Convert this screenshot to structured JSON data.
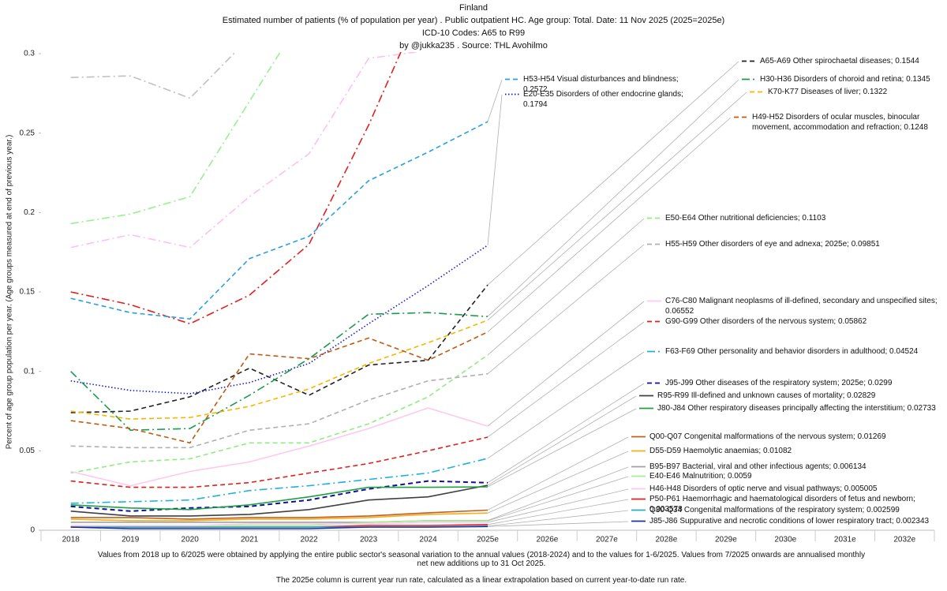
{
  "chart_data": {
    "type": "line",
    "title": "Finland",
    "subtitles": [
      "Estimated number of patients  (% of population per year) . Public outpatient HC. Age group: Total. Date: 11 Nov 2025 (2025=2025e)",
      "ICD-10 Codes: A65 to R99",
      "by @jukka235 . Source: THL Avohilmo"
    ],
    "y_label": "Percent of age group population per year. (Age groups measured at end of previous year.)",
    "notes": [
      "Values from 2018 up to 6/2025 were obtained by applying the entire public sector's seasonal variation to the annual values (2018-2024) and to the values for 1-6/2025. Values from 7/2025 onwards are annualised monthly net new additions up to 31 Oct 2025.",
      "The 2025e column is current year run rate, calculated as a linear extrapolation based on current year-to-date run rate."
    ],
    "categories": [
      "2018",
      "2019",
      "2020",
      "2021",
      "2022",
      "2023",
      "2024",
      "2025e",
      "2026e",
      "2027e",
      "2028e",
      "2029e",
      "2030e",
      "2031e",
      "2032e"
    ],
    "ylim": [
      0,
      0.3
    ],
    "yticks": [
      0,
      0.05,
      0.1,
      0.15,
      0.2,
      0.25,
      0.3
    ],
    "grid": false,
    "series": [
      {
        "color": "#c0c0c0",
        "dash": "dashdot",
        "values": [
          0.285,
          0.286,
          0.272,
          0.31,
          null,
          null,
          null,
          null,
          null,
          null,
          null,
          null,
          null,
          null,
          null
        ]
      },
      {
        "color": "#98f090",
        "dash": "dashdot",
        "values": [
          0.193,
          0.199,
          0.21,
          0.27,
          0.33,
          null,
          null,
          null,
          null,
          null,
          null,
          null,
          null,
          null,
          null
        ]
      },
      {
        "color": "#ffc0f0",
        "dash": "dashdot",
        "values": [
          0.178,
          0.186,
          0.178,
          0.21,
          0.237,
          0.297,
          0.302,
          null,
          null,
          null,
          null,
          null,
          null,
          null,
          null
        ]
      },
      {
        "color": "#e02020",
        "dash": "dashdot",
        "values": [
          0.15,
          0.142,
          0.13,
          0.148,
          0.18,
          0.255,
          0.34,
          null,
          null,
          null,
          null,
          null,
          null,
          null,
          null
        ]
      },
      {
        "name": "A65-A69 Other spirochaetal diseases; 0.1544",
        "color": "#222222",
        "dash": "dashed",
        "values": [
          0.074,
          0.075,
          0.084,
          0.102,
          0.085,
          0.104,
          0.107,
          0.1544,
          null,
          null,
          null,
          null,
          null,
          null,
          null
        ]
      },
      {
        "name": "H53-H54 Visual disturbances and blindness; 0.2572",
        "color": "#2aa0e0",
        "dash": "dashed",
        "values": [
          0.146,
          0.137,
          0.133,
          0.171,
          0.185,
          0.22,
          0.238,
          0.2572,
          null,
          null,
          null,
          null,
          null,
          null,
          null
        ]
      },
      {
        "name": "E20-E35 Disorders of other endocrine glands; 0.1794",
        "color": "#1a1acc",
        "dash": "dotted",
        "values": [
          0.094,
          0.088,
          0.086,
          0.093,
          0.105,
          0.13,
          0.154,
          0.1794,
          null,
          null,
          null,
          null,
          null,
          null,
          null
        ]
      },
      {
        "name": "H30-H36 Disorders of choroid and retina; 0.1345",
        "color": "#1a9a50",
        "dash": "dashdot",
        "values": [
          0.1,
          0.063,
          0.064,
          0.085,
          0.108,
          0.136,
          0.137,
          0.1345,
          null,
          null,
          null,
          null,
          null,
          null,
          null
        ]
      },
      {
        "name": "K70-K77 Diseases of liver; 0.1322",
        "color": "#f5b800",
        "dash": "dashed",
        "values": [
          0.075,
          0.07,
          0.071,
          0.078,
          0.089,
          0.105,
          0.118,
          0.1322,
          null,
          null,
          null,
          null,
          null,
          null,
          null
        ]
      },
      {
        "name": "H49-H52 Disorders of ocular muscles, binocular movement, accommodation and refraction; 0.1248",
        "color": "#c05a10",
        "dash": "dashed",
        "values": [
          0.069,
          0.064,
          0.055,
          0.111,
          0.108,
          0.121,
          0.107,
          0.1248,
          null,
          null,
          null,
          null,
          null,
          null,
          null
        ]
      },
      {
        "name": "E50-E64 Other nutritional deficiencies; 0.1103",
        "color": "#90ee80",
        "dash": "dashed",
        "values": [
          0.036,
          0.043,
          0.045,
          0.055,
          0.055,
          0.067,
          0.084,
          0.1103,
          null,
          null,
          null,
          null,
          null,
          null,
          null
        ]
      },
      {
        "name": "H55-H59 Other disorders of eye and adnexa; 2025e; 0.09851",
        "color": "#b0b0b0",
        "dash": "dashed",
        "values": [
          0.053,
          0.052,
          0.052,
          0.063,
          0.067,
          0.082,
          0.094,
          0.09851,
          null,
          null,
          null,
          null,
          null,
          null,
          null
        ]
      },
      {
        "name": "C76-C80 Malignant neoplasms of ill-defined, secondary and unspecified sites; 0.06552",
        "color": "#ffc8f0",
        "dash": "solid",
        "values": [
          0.037,
          0.028,
          0.037,
          0.043,
          0.053,
          0.064,
          0.077,
          0.06552,
          null,
          null,
          null,
          null,
          null,
          null,
          null
        ]
      },
      {
        "name": "G90-G99 Other disorders of the nervous system; 0.05862",
        "color": "#e02020",
        "dash": "dashed",
        "values": [
          0.031,
          0.027,
          0.027,
          0.03,
          0.036,
          0.042,
          0.05,
          0.05862,
          null,
          null,
          null,
          null,
          null,
          null,
          null
        ]
      },
      {
        "name": "F63-F69 Other personality and behavior disorders in adulthood; 0.04524",
        "color": "#20b0e0",
        "dash": "dashdot",
        "values": [
          0.017,
          0.018,
          0.019,
          0.025,
          0.028,
          0.032,
          0.036,
          0.04524,
          null,
          null,
          null,
          null,
          null,
          null,
          null
        ]
      },
      {
        "name": "J95-J99 Other diseases of the respiratory system; 2025e; 0.0299",
        "color": "#1010a0",
        "dash": "dashed",
        "values": [
          0.015,
          0.012,
          0.014,
          0.015,
          0.019,
          0.026,
          0.031,
          0.0299,
          null,
          null,
          null,
          null,
          null,
          null,
          null
        ]
      },
      {
        "name": "R95-R99 Ill-defined and unknown causes of mortality; 0.02829",
        "color": "#404040",
        "dash": "solid",
        "values": [
          0.012,
          0.009,
          0.009,
          0.01,
          0.013,
          0.019,
          0.021,
          0.02829,
          null,
          null,
          null,
          null,
          null,
          null,
          null
        ]
      },
      {
        "name": "J80-J84 Other respiratory diseases principally affecting the interstitium; 0.02733",
        "color": "#20a040",
        "dash": "solid",
        "values": [
          0.016,
          0.014,
          0.013,
          0.016,
          0.021,
          0.027,
          0.027,
          0.02733,
          null,
          null,
          null,
          null,
          null,
          null,
          null
        ]
      },
      {
        "name": "Q00-Q07 Congenital malformations of the nervous system; 0.01269",
        "color": "#c06020",
        "dash": "solid",
        "values": [
          0.008,
          0.008,
          0.007,
          0.008,
          0.008,
          0.009,
          0.011,
          0.01269,
          null,
          null,
          null,
          null,
          null,
          null,
          null
        ]
      },
      {
        "name": "D55-D59 Haemolytic anaemias; 0.01082",
        "color": "#f0b020",
        "dash": "solid",
        "values": [
          0.007,
          0.006,
          0.006,
          0.007,
          0.007,
          0.008,
          0.01,
          0.01082,
          null,
          null,
          null,
          null,
          null,
          null,
          null
        ]
      },
      {
        "name": "B95-B97 Bacterial, viral and other infectious agents; 0.006134",
        "color": "#a0a0a0",
        "dash": "solid",
        "values": [
          0.005,
          0.005,
          0.005,
          0.005,
          0.005,
          0.005,
          0.006,
          0.006134,
          null,
          null,
          null,
          null,
          null,
          null,
          null
        ]
      },
      {
        "name": "E40-E46 Malnutrition; 0.0059",
        "color": "#a0f090",
        "dash": "solid",
        "values": [
          0.003,
          0.003,
          0.003,
          0.003,
          0.003,
          0.005,
          0.006,
          0.0059,
          null,
          null,
          null,
          null,
          null,
          null,
          null
        ]
      },
      {
        "name": "H46-H48 Disorders of optic nerve and visual pathways; 0.005005",
        "color": "#ffc8f0",
        "dash": "solid",
        "values": [
          0.003,
          0.003,
          0.003,
          0.004,
          0.004,
          0.004,
          0.005,
          0.005005,
          null,
          null,
          null,
          null,
          null,
          null,
          null
        ]
      },
      {
        "name": "P50-P61 Haemorrhagic and haematological disorders of fetus and newborn; 0.003578",
        "color": "#e02020",
        "dash": "solid",
        "values": [
          0.002,
          0.002,
          0.002,
          0.002,
          0.002,
          0.003,
          0.003,
          0.003578,
          null,
          null,
          null,
          null,
          null,
          null,
          null
        ]
      },
      {
        "name": "Q30-Q34 Congenital malformations of the respiratory system; 0.002599",
        "color": "#20b0c0",
        "dash": "solid",
        "values": [
          0.002,
          0.002,
          0.002,
          0.002,
          0.002,
          0.002,
          0.002,
          0.002599,
          null,
          null,
          null,
          null,
          null,
          null,
          null
        ]
      },
      {
        "name": "J85-J86 Suppurative and necrotic conditions of lower respiratory tract; 0.002343",
        "color": "#2030a0",
        "dash": "solid",
        "values": [
          0.002,
          0.001,
          0.001,
          0.001,
          0.001,
          0.002,
          0.002,
          0.002343,
          null,
          null,
          null,
          null,
          null,
          null,
          null
        ]
      }
    ]
  }
}
